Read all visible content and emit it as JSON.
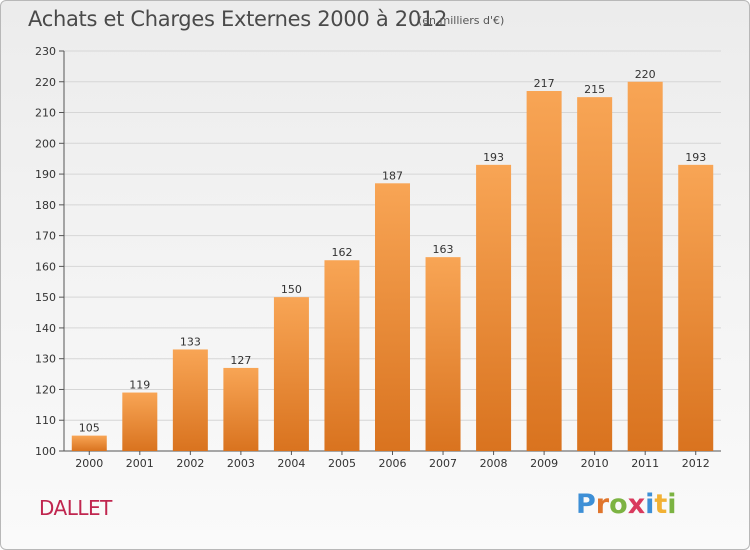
{
  "header": {
    "title": "Achats et Charges Externes 2000 à 2012",
    "subtitle": "(en milliers d'€)"
  },
  "footer": {
    "commune": "DALLET",
    "logo_text": "Proxiti",
    "logo_letters": [
      {
        "char": "P",
        "color": "#3d8fd6"
      },
      {
        "char": "r",
        "color": "#e0752c"
      },
      {
        "char": "o",
        "color": "#7cb342"
      },
      {
        "char": "x",
        "color": "#d93a5e"
      },
      {
        "char": "i",
        "color": "#3d8fd6"
      },
      {
        "char": "t",
        "color": "#f2b134"
      },
      {
        "char": "i",
        "color": "#7cb342"
      }
    ]
  },
  "colors": {
    "bar_top": "#f8a555",
    "bar_bottom": "#d9731f",
    "text": "#333333",
    "grid": "#d6d6d6"
  },
  "chart_data": {
    "type": "bar",
    "title": "Achats et Charges Externes 2000 à 2012",
    "subtitle": "(en milliers d'€)",
    "categories": [
      "2000",
      "2001",
      "2002",
      "2003",
      "2004",
      "2005",
      "2006",
      "2007",
      "2008",
      "2009",
      "2010",
      "2011",
      "2012"
    ],
    "values": [
      105,
      119,
      133,
      127,
      150,
      162,
      187,
      163,
      193,
      217,
      215,
      220,
      193
    ],
    "ylim": [
      100,
      230
    ],
    "yticks": [
      100,
      110,
      120,
      130,
      140,
      150,
      160,
      170,
      180,
      190,
      200,
      210,
      220,
      230
    ],
    "grid": true,
    "data_labels": true
  }
}
